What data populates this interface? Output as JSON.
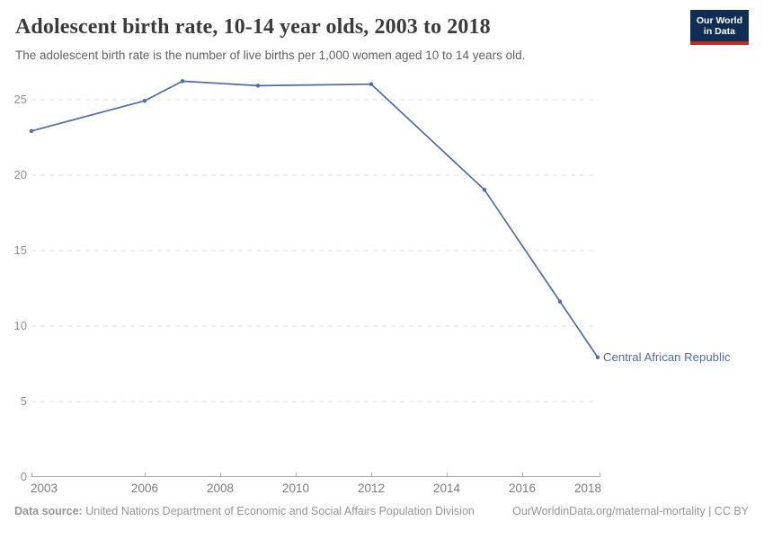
{
  "logo": {
    "line1": "Our World",
    "line2": "in Data"
  },
  "chart_data": {
    "type": "line",
    "title": "Adolescent birth rate, 10-14 year olds, 2003 to 2018",
    "subtitle": "The adolescent birth rate is the number of live births per 1,000 women aged 10 to 14 years old.",
    "xlabel": "",
    "ylabel": "",
    "xlim": [
      2003,
      2018
    ],
    "ylim": [
      0,
      26.5
    ],
    "x_ticks": [
      2003,
      2006,
      2008,
      2010,
      2012,
      2014,
      2016,
      2018
    ],
    "y_ticks": [
      0,
      5,
      10,
      15,
      20,
      25
    ],
    "grid": "horizontal-dashed",
    "legend": "end-of-line-label",
    "series": [
      {
        "name": "Central African Republic",
        "x": [
          2003,
          2006,
          2007,
          2009,
          2012,
          2015,
          2017,
          2018
        ],
        "values": [
          22.9,
          24.9,
          26.2,
          25.9,
          26.0,
          19.0,
          11.6,
          7.9
        ],
        "color": "#4c6bac"
      }
    ]
  },
  "footer": {
    "datasource_label": "Data source:",
    "datasource_text": "United Nations Department of Economic and Social Affairs Population Division",
    "credit": "OurWorldinData.org/maternal-mortality | CC BY"
  },
  "colors": {
    "line": "#4c6bac",
    "logo_bg": "#102d55",
    "logo_bar": "#d2231e",
    "grid": "#dedede",
    "axis": "#a9a9a9",
    "y_tick_label": "#8f8f8f",
    "x_tick_label": "#7b7b7b",
    "title": "#3b3b3b",
    "subtitle": "#616161",
    "footer": "#949494"
  }
}
